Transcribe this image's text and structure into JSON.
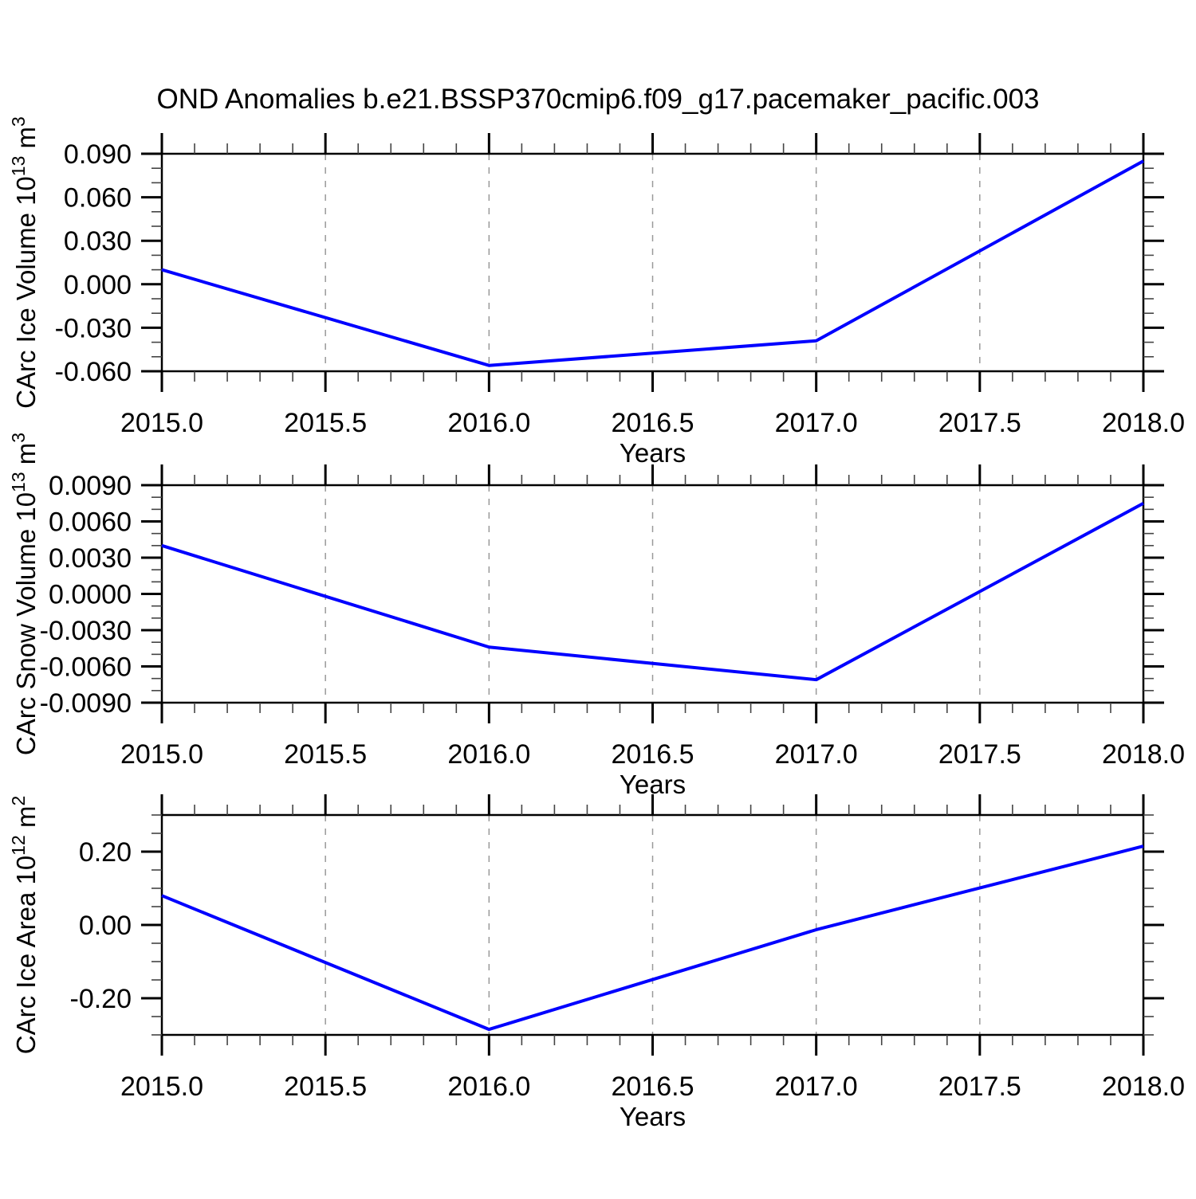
{
  "title": "OND Anomalies b.e21.BSSP370cmip6.f09_g17.pacemaker_pacific.003",
  "colors": {
    "line": "#0000ff",
    "axis": "#000000",
    "minor_tick": "#444444",
    "grid": "#999999",
    "text": "#000000",
    "background": "#ffffff"
  },
  "x_axis": {
    "label": "Years",
    "tick_labels": [
      "2015.0",
      "2015.5",
      "2016.0",
      "2016.5",
      "2017.0",
      "2017.5",
      "2018.0"
    ],
    "tick_values": [
      2015.0,
      2015.5,
      2016.0,
      2016.5,
      2017.0,
      2017.5,
      2018.0
    ],
    "minor_step": 0.1,
    "xlim": [
      2015.0,
      2018.0
    ],
    "gridline_values": [
      2015.5,
      2016.0,
      2016.5,
      2017.0,
      2017.5
    ],
    "grid": "vertical-dashed"
  },
  "chart_data": [
    {
      "type": "line",
      "name": "carc-ice-volume",
      "title": "",
      "xlabel": "Years",
      "ylabel_parts": [
        {
          "text": "CArc Ice Volume 10",
          "sup": false
        },
        {
          "text": "13",
          "sup": true
        },
        {
          "text": " m",
          "sup": false
        },
        {
          "text": "3",
          "sup": true
        }
      ],
      "x": [
        2015,
        2016,
        2017,
        2018
      ],
      "values": [
        0.01,
        -0.056,
        -0.039,
        0.085
      ],
      "ylim": [
        -0.06,
        0.09
      ],
      "ytick_labels": [
        "0.090",
        "0.060",
        "0.030",
        "0.000",
        "-0.030",
        "-0.060"
      ],
      "ytick_values": [
        0.09,
        0.06,
        0.03,
        0.0,
        -0.03,
        -0.06
      ],
      "yminor_step": 0.01,
      "legend": "none"
    },
    {
      "type": "line",
      "name": "carc-snow-volume",
      "title": "",
      "xlabel": "Years",
      "ylabel_parts": [
        {
          "text": "CArc Snow Volume 10",
          "sup": false
        },
        {
          "text": "13",
          "sup": true
        },
        {
          "text": " m",
          "sup": false
        },
        {
          "text": "3",
          "sup": true
        }
      ],
      "x": [
        2015,
        2016,
        2017,
        2018
      ],
      "values": [
        0.004,
        -0.0044,
        -0.0071,
        0.0075
      ],
      "ylim": [
        -0.009,
        0.009
      ],
      "ytick_labels": [
        "0.0090",
        "0.0060",
        "0.0030",
        "0.0000",
        "-0.0030",
        "-0.0060",
        "-0.0090"
      ],
      "ytick_values": [
        0.009,
        0.006,
        0.003,
        0.0,
        -0.003,
        -0.006,
        -0.009
      ],
      "yminor_step": 0.001,
      "legend": "none"
    },
    {
      "type": "line",
      "name": "carc-ice-area",
      "title": "",
      "xlabel": "Years",
      "ylabel_parts": [
        {
          "text": "CArc Ice Area 10",
          "sup": false
        },
        {
          "text": "12",
          "sup": true
        },
        {
          "text": " m",
          "sup": false
        },
        {
          "text": "2",
          "sup": true
        }
      ],
      "x": [
        2015,
        2016,
        2017,
        2018
      ],
      "values": [
        0.08,
        -0.285,
        -0.013,
        0.215
      ],
      "ylim": [
        -0.3,
        0.3
      ],
      "ytick_labels": [
        "0.20",
        "0.00",
        "-0.20"
      ],
      "ytick_values": [
        0.2,
        0.0,
        -0.2
      ],
      "yminor_step": 0.05,
      "legend": "none"
    }
  ]
}
